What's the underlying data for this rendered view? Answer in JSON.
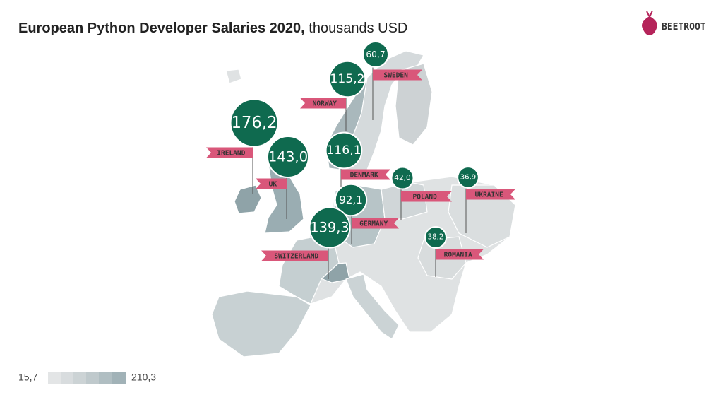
{
  "header": {
    "title_bold": "European Python Developer Salaries 2020,",
    "title_unit": "thousands USD"
  },
  "brand": "BEETROOT",
  "countries": [
    {
      "name": "SWEDEN",
      "value": 60.7,
      "value_label": "60,7"
    },
    {
      "name": "NORWAY",
      "value": 115.2,
      "value_label": "115,2"
    },
    {
      "name": "IRELAND",
      "value": 176.2,
      "value_label": "176,2"
    },
    {
      "name": "UK",
      "value": 143.0,
      "value_label": "143,0"
    },
    {
      "name": "DENMARK",
      "value": 116.1,
      "value_label": "116,1"
    },
    {
      "name": "POLAND",
      "value": 42.0,
      "value_label": "42,0"
    },
    {
      "name": "UKRAINE",
      "value": 36.9,
      "value_label": "36,9"
    },
    {
      "name": "GERMANY",
      "value": 92.1,
      "value_label": "92,1"
    },
    {
      "name": "SWITZERLAND",
      "value": 139.3,
      "value_label": "139,3"
    },
    {
      "name": "ROMANIA",
      "value": 38.2,
      "value_label": "38,2"
    }
  ],
  "legend": {
    "min": {
      "value": 15.7,
      "label": "15,7"
    },
    "max": {
      "value": 210.3,
      "label": "210,3"
    }
  }
}
